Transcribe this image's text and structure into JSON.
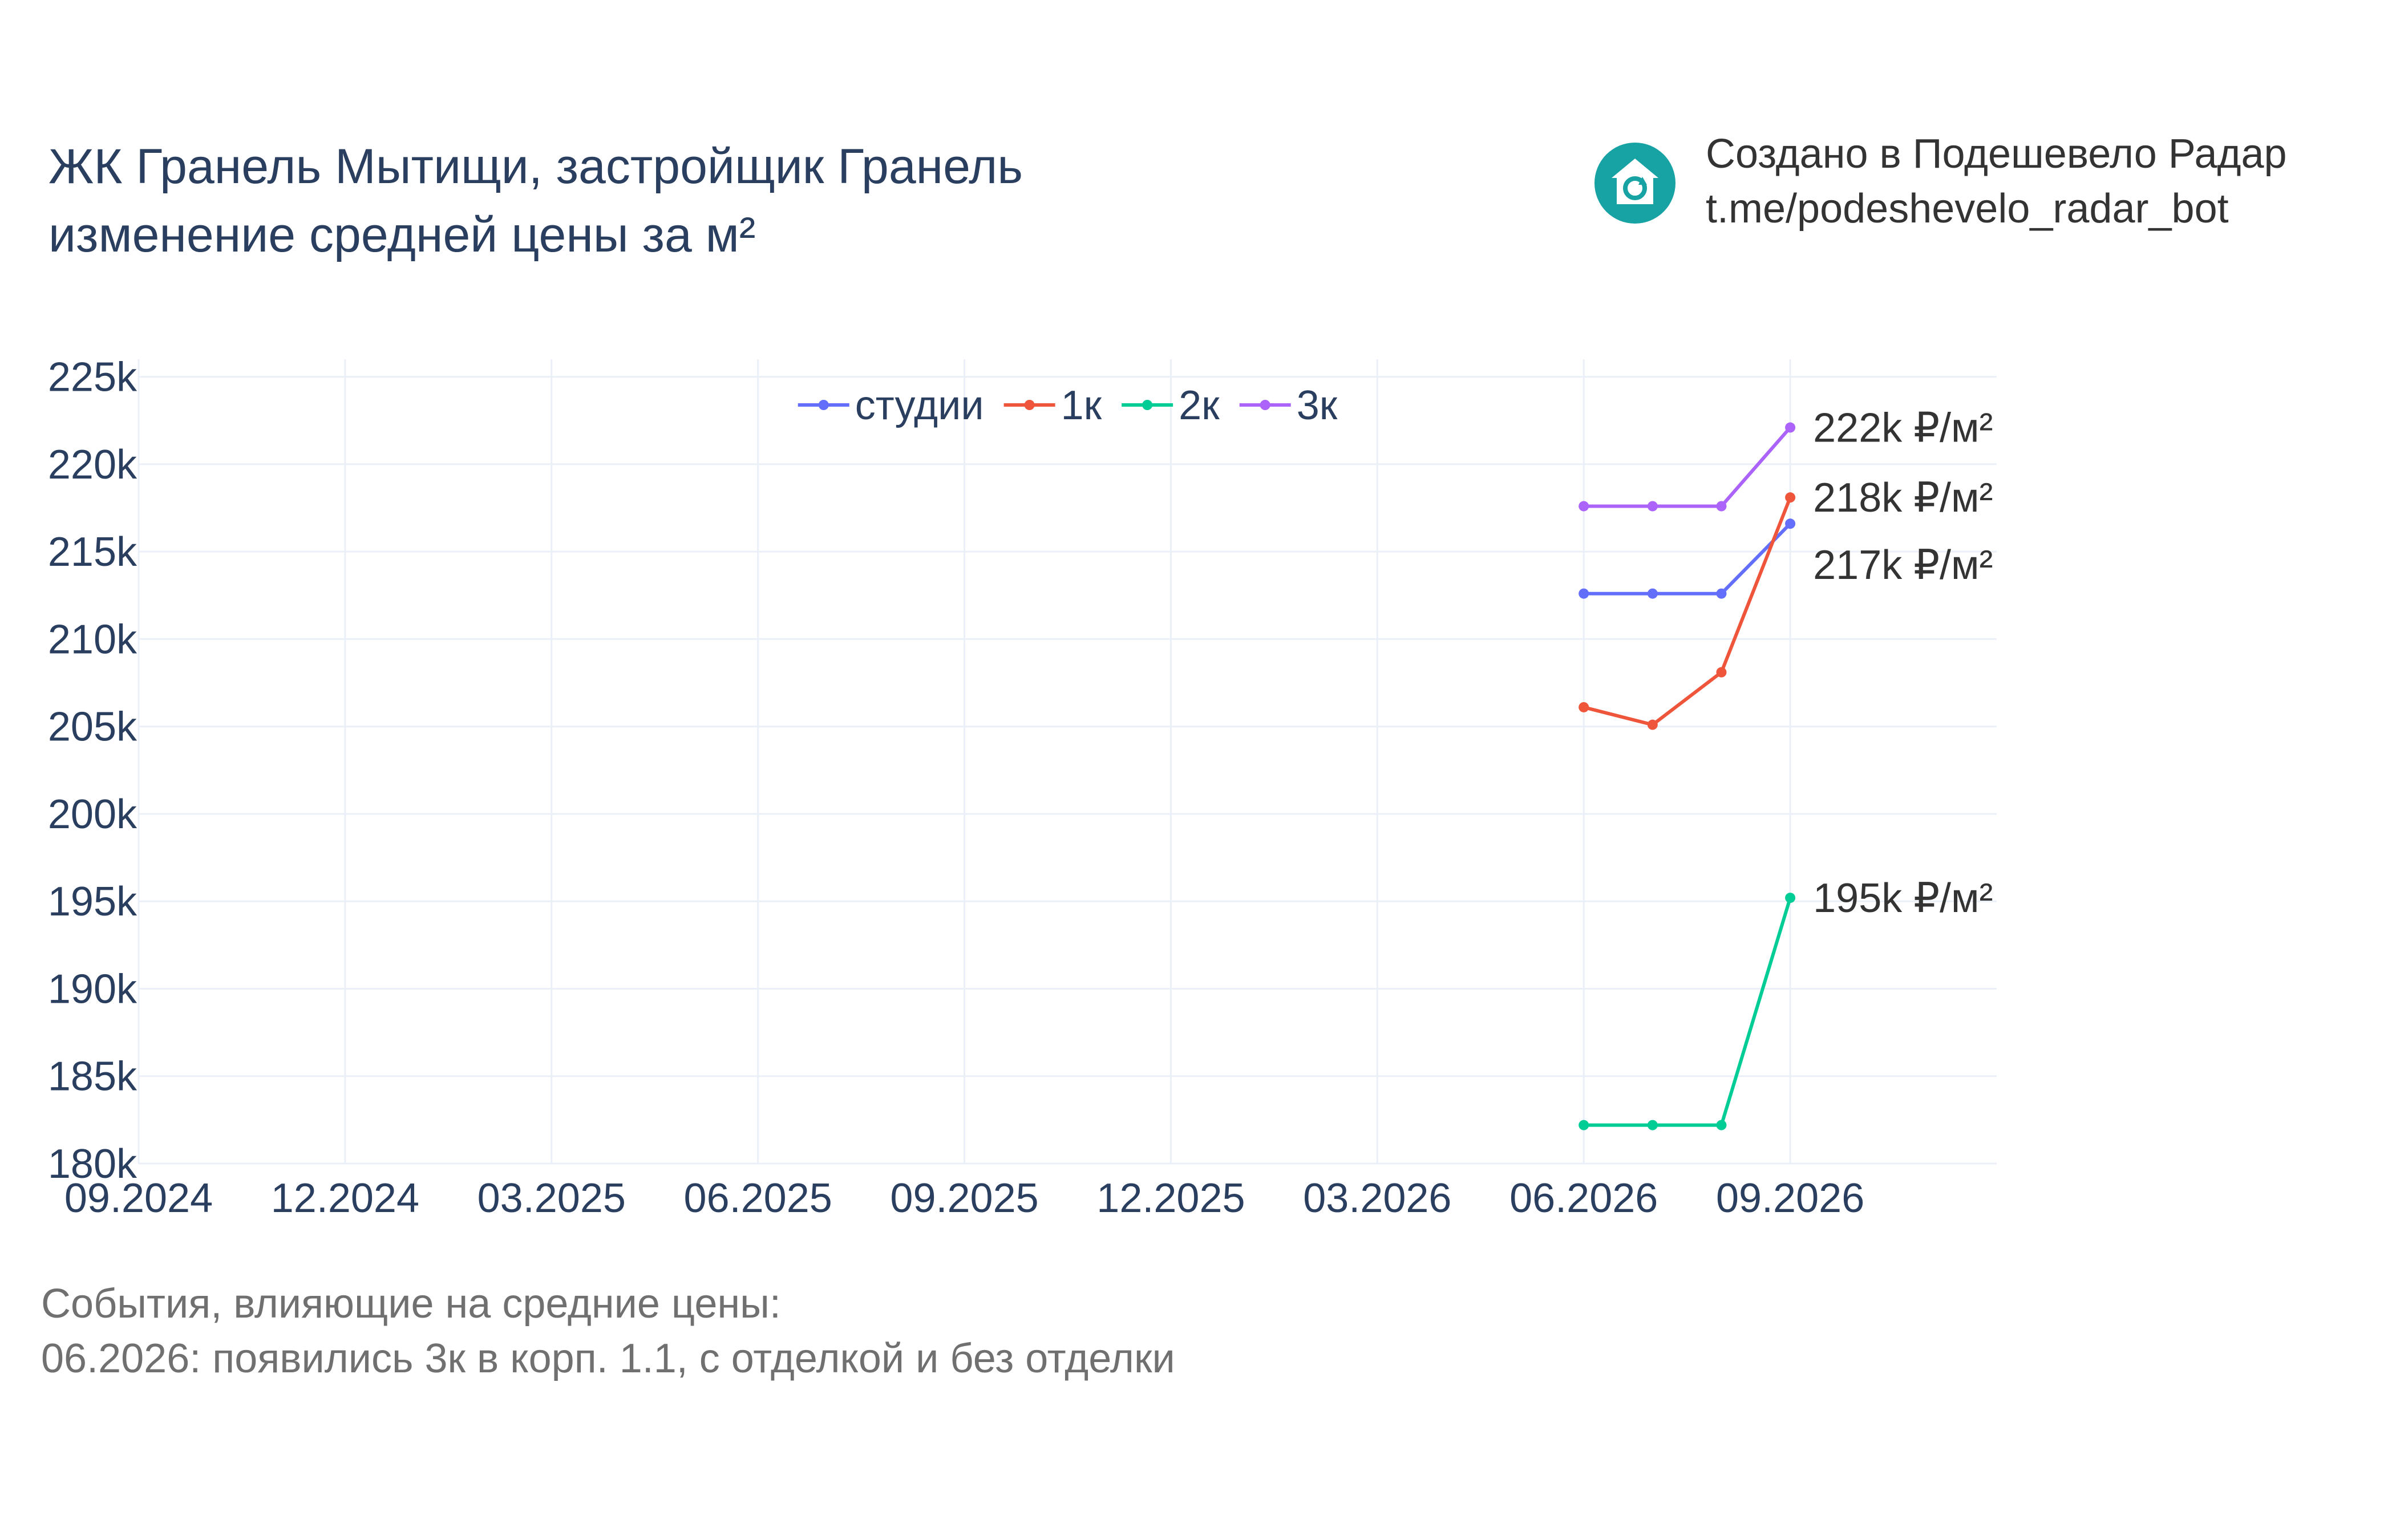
{
  "header": {
    "title_line1": "ЖК Гранель Мытищи, застройщик Гранель",
    "title_line2": "изменение средней цены за м²"
  },
  "brand": {
    "icon": "house-refresh-icon",
    "line1": "Создано в Подешевело Радар",
    "line2": "t.me/podeshevelo_radar_bot",
    "color": "#17a2a4"
  },
  "notes": {
    "line1": "События, влияющие на средние цены:",
    "line2": "06.2026: появились 3к в корп. 1.1, с отделкой и без отделки"
  },
  "chart_data": {
    "type": "line",
    "x_ticks": [
      "09.2024",
      "12.2024",
      "03.2025",
      "06.2025",
      "09.2025",
      "12.2025",
      "03.2026",
      "06.2026",
      "09.2026"
    ],
    "y_ticks": [
      "180k",
      "185k",
      "190k",
      "195k",
      "200k",
      "205k",
      "210k",
      "215k",
      "220k",
      "225k"
    ],
    "ylim": [
      180000,
      226000
    ],
    "xlim": [
      "2024-09-01",
      "2026-12-01"
    ],
    "grid": true,
    "legend": "top-center",
    "x": [
      "2026-06-01",
      "2026-07-01",
      "2026-08-01",
      "2026-09-01"
    ],
    "series": [
      {
        "name": "студии",
        "color": "#636efa",
        "values": [
          212600,
          212600,
          212600,
          216600
        ],
        "end_label": "217k ₽/м²"
      },
      {
        "name": "1к",
        "color": "#ef553b",
        "values": [
          206100,
          205100,
          208100,
          218100
        ],
        "end_label": "218k ₽/м²"
      },
      {
        "name": "2к",
        "color": "#00cc96",
        "values": [
          182200,
          182200,
          182200,
          195200
        ],
        "end_label": "195k ₽/м²"
      },
      {
        "name": "3к",
        "color": "#ab63fa",
        "values": [
          217600,
          217600,
          217600,
          222100
        ],
        "end_label": "222k ₽/м²"
      }
    ]
  }
}
